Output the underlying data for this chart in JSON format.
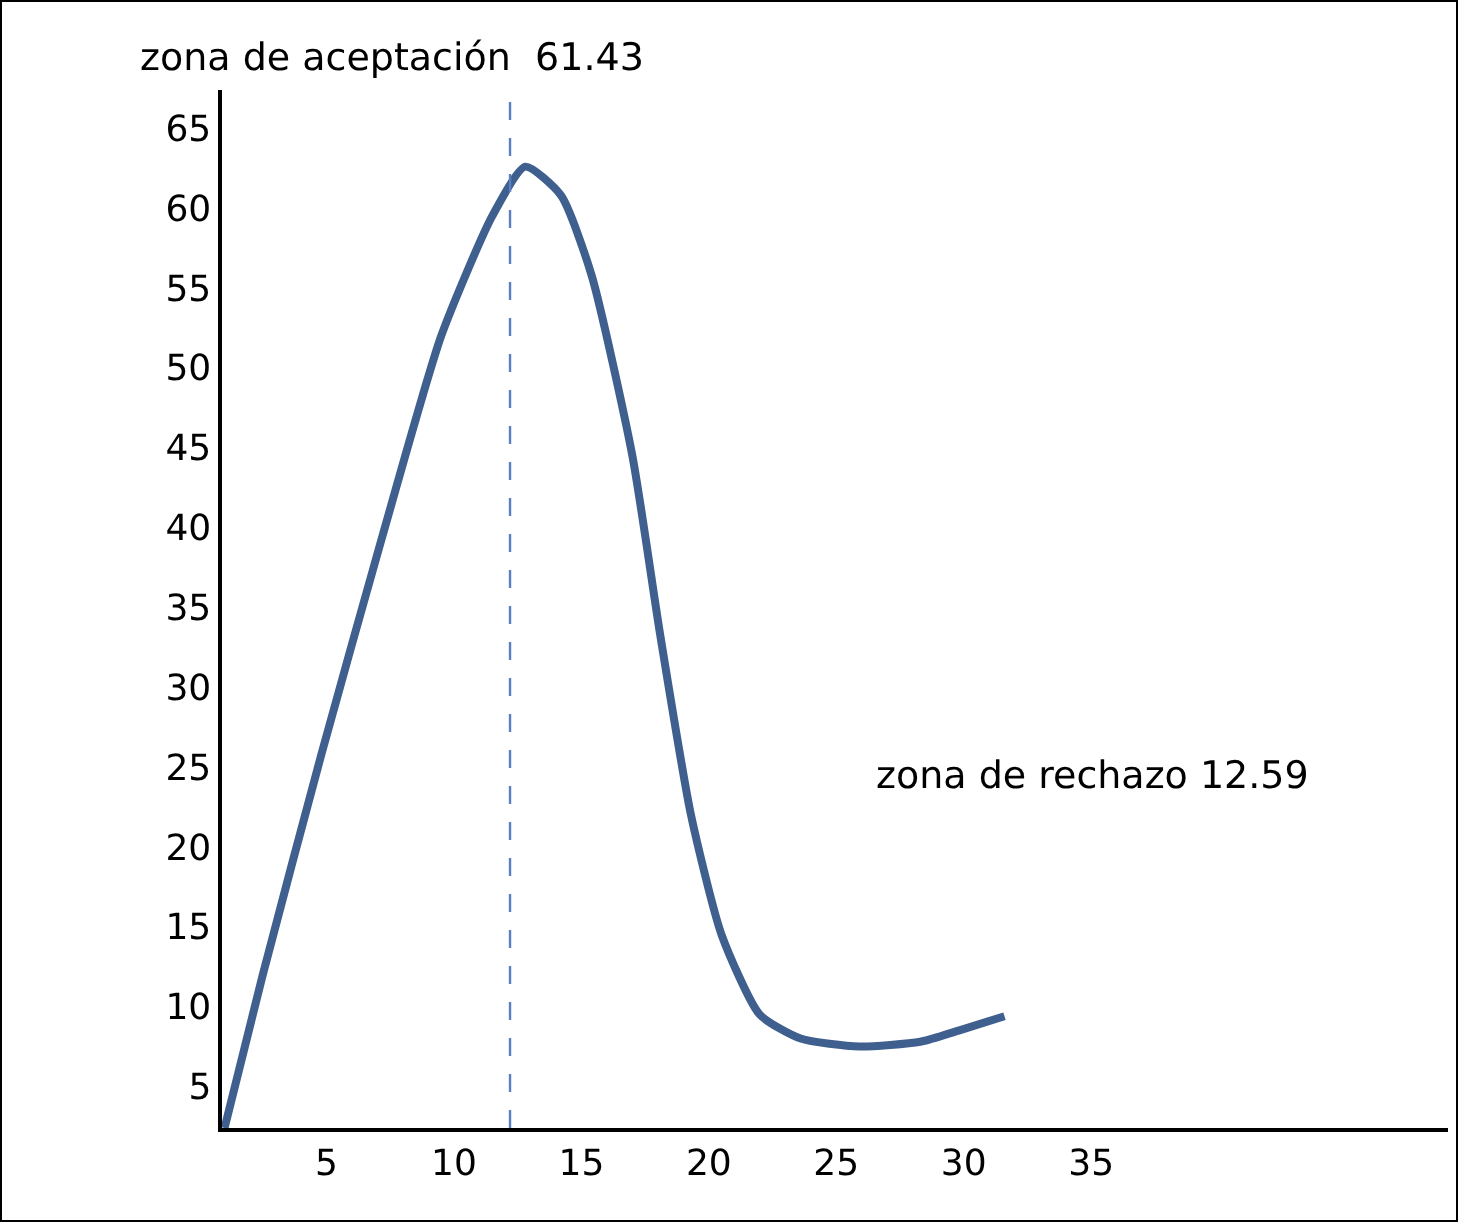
{
  "chart_data": {
    "type": "line",
    "x": [
      1,
      2.5,
      4.8,
      7.2,
      9.5,
      11.5,
      12.8,
      14.2,
      15.4,
      17,
      18.1,
      19.3,
      20.5,
      22,
      23.6,
      25.9,
      28.3,
      29.8,
      31.6
    ],
    "series": [
      {
        "color": "#3f5f8f",
        "values": [
          2.4,
          12,
          25.8,
          39.5,
          52,
          59.5,
          62.6,
          60.8,
          55.8,
          44.5,
          33.2,
          22,
          14.5,
          9.5,
          8,
          7.5,
          7.8,
          8.5,
          9.4
        ]
      }
    ],
    "xlim": [
      0.9,
      49
    ],
    "xticks": [
      5,
      10,
      15,
      20,
      25,
      30,
      35
    ],
    "ylim": [
      2.4,
      67.4
    ],
    "yticks": [
      5,
      10,
      15,
      20,
      25,
      30,
      35,
      40,
      45,
      50,
      55,
      60,
      65
    ],
    "ref_lines": [
      {
        "axis": "x",
        "value": 12.2,
        "color": "#5b7fc0",
        "line_style": "dashed"
      }
    ],
    "annotations": [
      "zona de aceptación  61.43",
      "zona de rechazo 12.59"
    ],
    "grid": false,
    "legend": false,
    "marker": "none",
    "line_style": "solid"
  }
}
